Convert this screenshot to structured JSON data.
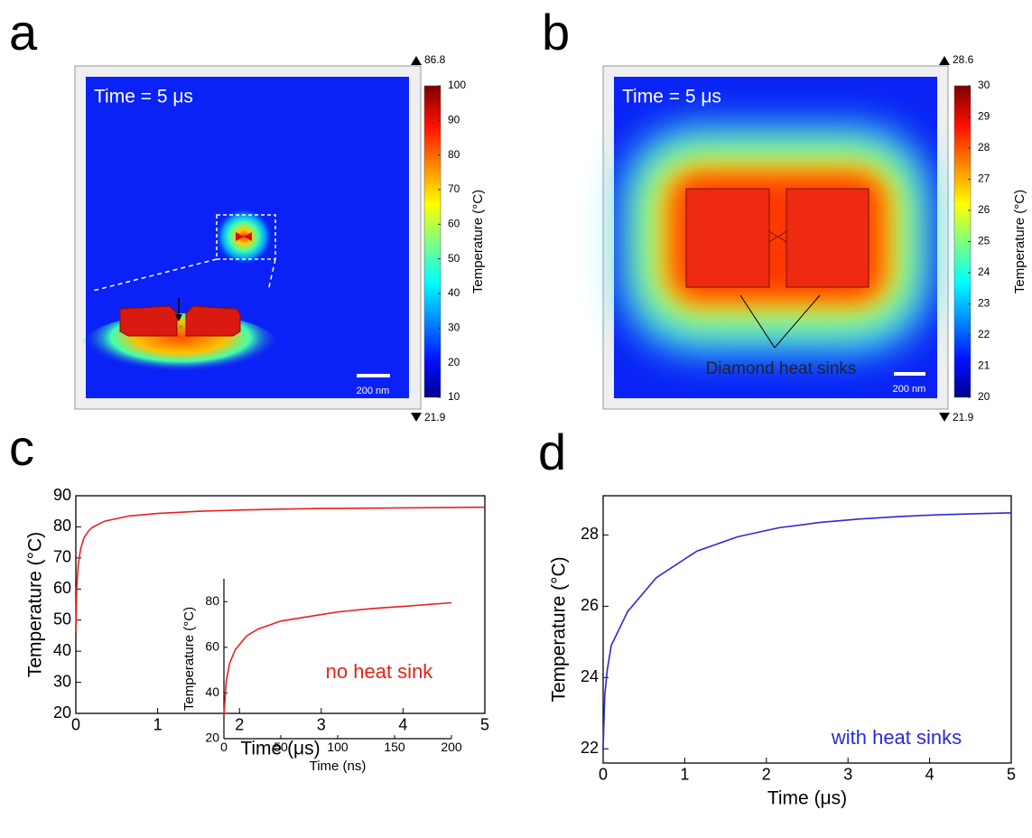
{
  "chart_data": [
    {
      "type": "thermal-map",
      "panel": "a",
      "annotation": "Time = 5 μs",
      "scale_bar": "200 nm",
      "colorbar_label": "Temperature (°C)",
      "clim": [
        10,
        100
      ],
      "cticks": [
        10,
        20,
        30,
        40,
        50,
        60,
        70,
        80,
        90,
        100
      ],
      "max": 86.8,
      "min": 21.9
    },
    {
      "type": "thermal-map",
      "panel": "b",
      "annotation": "Time = 5 μs",
      "scale_bar": "200 nm",
      "callout": "Diamond heat sinks",
      "colorbar_label": "Temperature (°C)",
      "clim": [
        20,
        30
      ],
      "cticks": [
        20,
        21,
        22,
        23,
        24,
        25,
        26,
        27,
        28,
        29,
        30
      ],
      "max": 28.6,
      "min": 21.9
    },
    {
      "type": "line",
      "panel": "c",
      "xlabel": "Time (μs)",
      "ylabel": "Temperature (°C)",
      "annotation": "no heat sink",
      "color": "#e8211b",
      "x": [
        0,
        0.01,
        0.03,
        0.06,
        0.1,
        0.15,
        0.2,
        0.35,
        0.65,
        1,
        1.5,
        2,
        2.5,
        3,
        4,
        5
      ],
      "values": [
        46,
        60,
        68,
        73,
        76.5,
        78.5,
        79.8,
        81.8,
        83.5,
        84.3,
        85,
        85.4,
        85.7,
        85.9,
        86.1,
        86.3
      ],
      "xlim": [
        0,
        5
      ],
      "ylim": [
        20,
        90
      ],
      "xticks": [
        0,
        1,
        2,
        3,
        4,
        5
      ],
      "yticks": [
        20,
        30,
        40,
        50,
        60,
        70,
        80,
        90
      ]
    },
    {
      "type": "line",
      "xlabel": "Time (ns)",
      "ylabel": "Temperature (°C)",
      "color": "#e8211b",
      "x": [
        0,
        2,
        5,
        10,
        20,
        30,
        50,
        75,
        100,
        130,
        160,
        200
      ],
      "values": [
        30,
        45,
        53,
        59,
        65,
        68,
        71.5,
        73.5,
        75.5,
        77,
        78,
        79.5
      ],
      "xlim": [
        0,
        200
      ],
      "ylim": [
        20,
        90
      ],
      "xticks": [
        0,
        50,
        100,
        150,
        200
      ],
      "yticks": [
        20,
        40,
        60,
        80
      ]
    },
    {
      "type": "line",
      "panel": "d",
      "xlabel": "Time (μs)",
      "ylabel": "Temperature (°C)",
      "annotation": "with heat sinks",
      "color": "#2a2ad6",
      "x": [
        0,
        0.02,
        0.05,
        0.1,
        0.3,
        0.65,
        1.15,
        1.65,
        2.15,
        2.65,
        3.15,
        3.65,
        4.15,
        4.65,
        5
      ],
      "values": [
        22,
        23.5,
        24.2,
        24.9,
        25.85,
        26.8,
        27.55,
        27.95,
        28.2,
        28.35,
        28.45,
        28.52,
        28.57,
        28.6,
        28.62
      ],
      "xlim": [
        0,
        5
      ],
      "ylim": [
        21.6,
        29.1
      ],
      "xticks": [
        0,
        1,
        2,
        3,
        4,
        5
      ],
      "yticks": [
        22,
        24,
        26,
        28
      ]
    }
  ]
}
